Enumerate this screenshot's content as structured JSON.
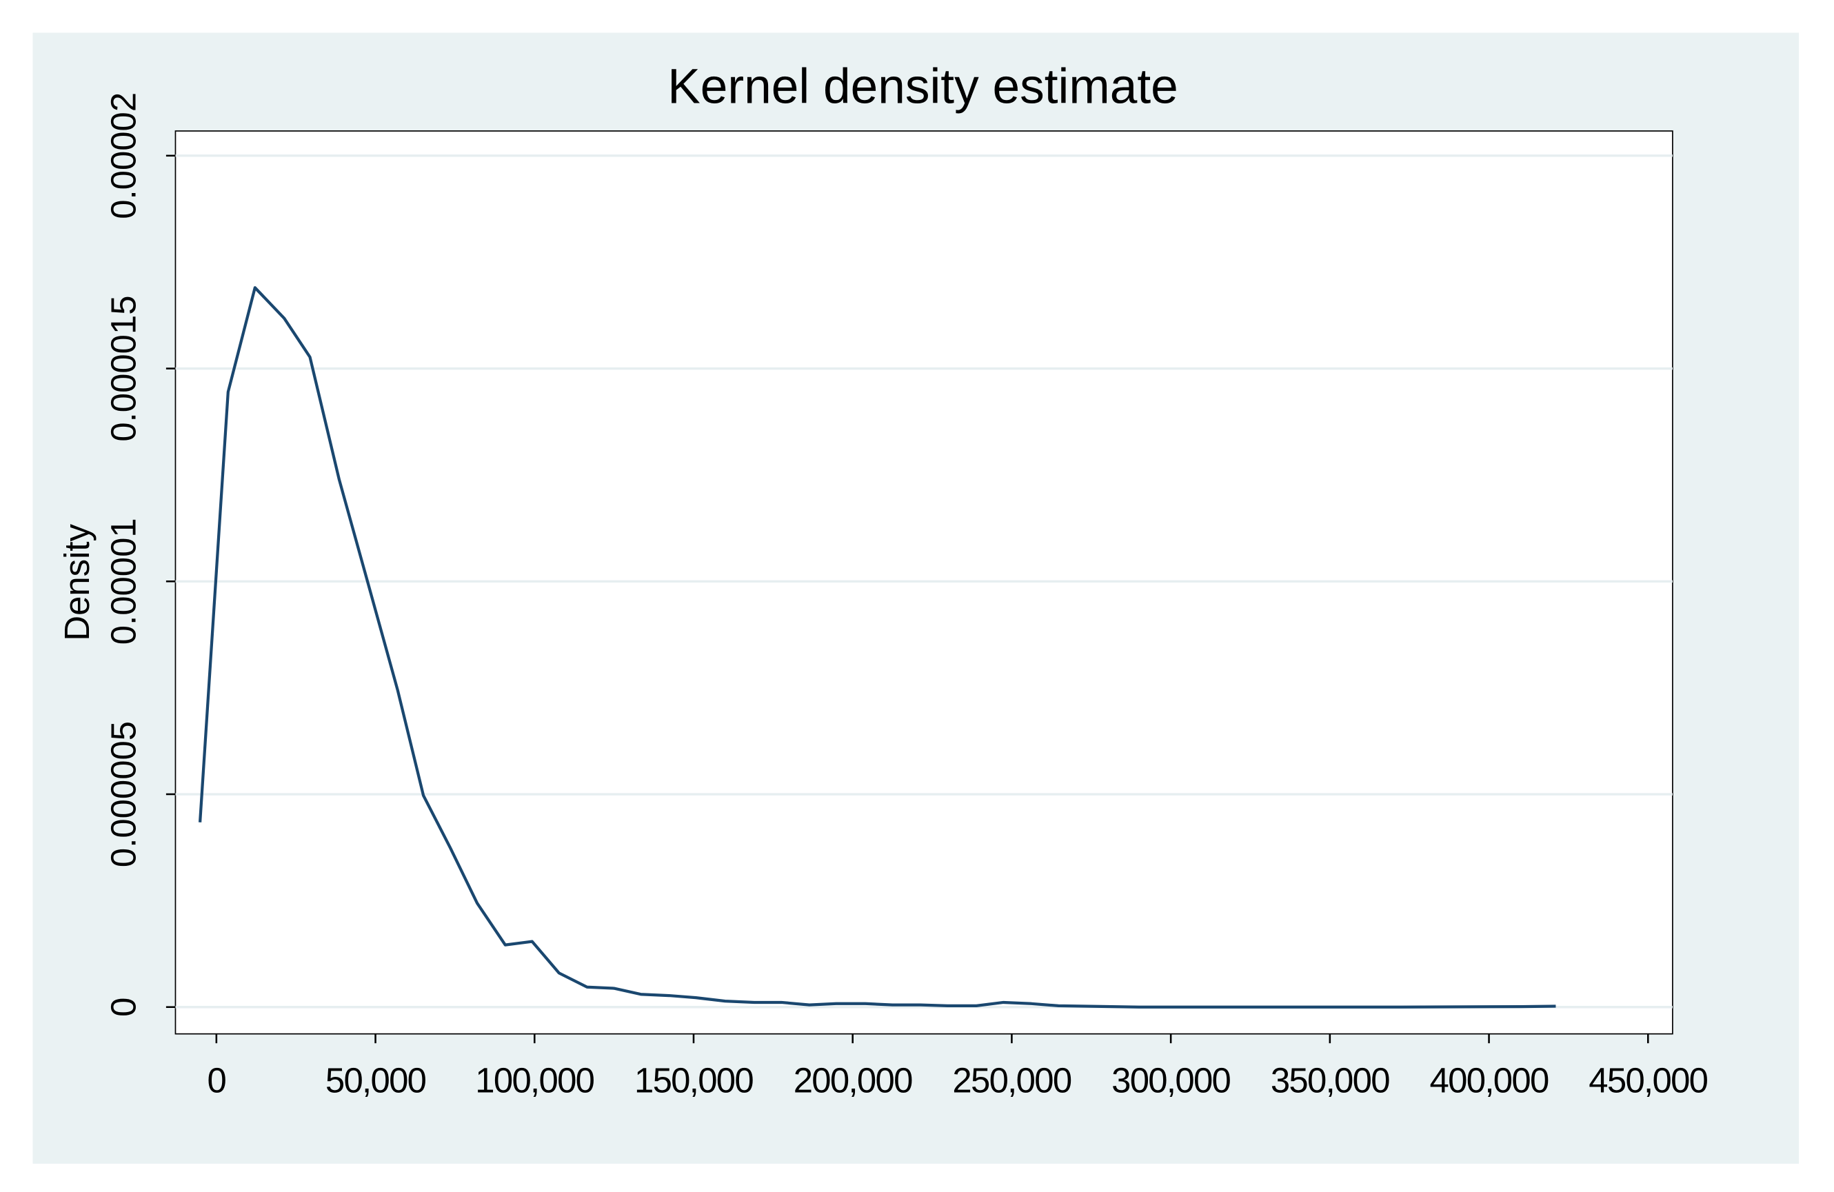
{
  "chart_data": {
    "type": "line",
    "title": "Kernel density estimate",
    "ylabel": "Density",
    "x": [
      -5150,
      3680,
      12130,
      21320,
      29400,
      38600,
      47790,
      56990,
      65070,
      73520,
      81970,
      90790,
      99240,
      107700,
      116500,
      125000,
      133400,
      142300,
      150700,
      159900,
      169100,
      177600,
      186400,
      194800,
      204000,
      212500,
      221300,
      229800,
      238900,
      247400,
      256200,
      264700,
      290000,
      330000,
      370000,
      410000,
      421000
    ],
    "series": [
      {
        "name": "Density",
        "color": "#1a476f",
        "values": [
          4.34e-06,
          1.445e-05,
          1.69e-05,
          1.618e-05,
          1.527e-05,
          1.239e-05,
          9.92e-06,
          7.44e-06,
          4.97e-06,
          3.74e-06,
          2.44e-06,
          1.46e-06,
          1.54e-06,
          8e-07,
          4.7e-07,
          4.4e-07,
          3e-07,
          2.7e-07,
          2.2e-07,
          1.4e-07,
          1.1e-07,
          1.1e-07,
          5e-08,
          8e-08,
          8e-08,
          5e-08,
          5e-08,
          3e-08,
          3e-08,
          1.1e-07,
          8e-08,
          3e-08,
          0,
          0,
          0,
          1e-08,
          2e-08
        ]
      }
    ],
    "xlim": [
      -12870,
      457720
    ],
    "ylim": [
      -6.3e-07,
      2.058e-05
    ],
    "xticks": [
      0,
      {
        "value": 50000,
        "label": "50,000"
      },
      {
        "value": 100000,
        "label": "100,000"
      },
      {
        "value": 150000,
        "label": "150,000"
      },
      {
        "value": 200000,
        "label": "200,000"
      },
      {
        "value": 250000,
        "label": "250,000"
      },
      {
        "value": 300000,
        "label": "300,000"
      },
      {
        "value": 350000,
        "label": "350,000"
      },
      {
        "value": 400000,
        "label": "400,000"
      },
      {
        "value": 450000,
        "label": "450,000"
      }
    ],
    "yticks": [
      0,
      5e-06,
      1e-05,
      1.5e-05,
      2e-05
    ],
    "grid": true
  }
}
